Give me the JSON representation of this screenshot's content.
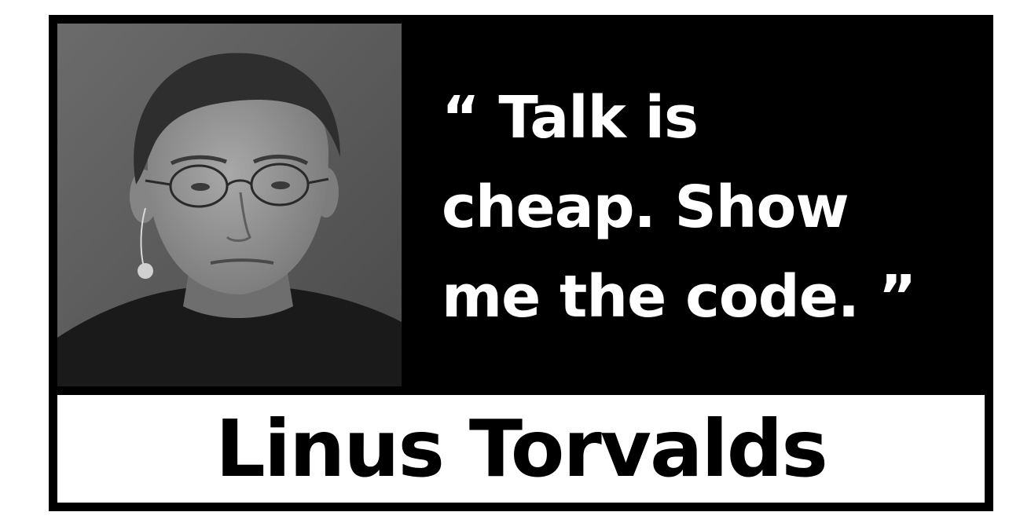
{
  "quote": {
    "lines": [
      "“ Talk is",
      "cheap. Show",
      "me the code. ”"
    ]
  },
  "author": {
    "name": "Linus Torvalds"
  },
  "colors": {
    "frame": "#000000",
    "name_bar": "#ffffff",
    "quote_text": "#ffffff",
    "name_text": "#000000"
  }
}
